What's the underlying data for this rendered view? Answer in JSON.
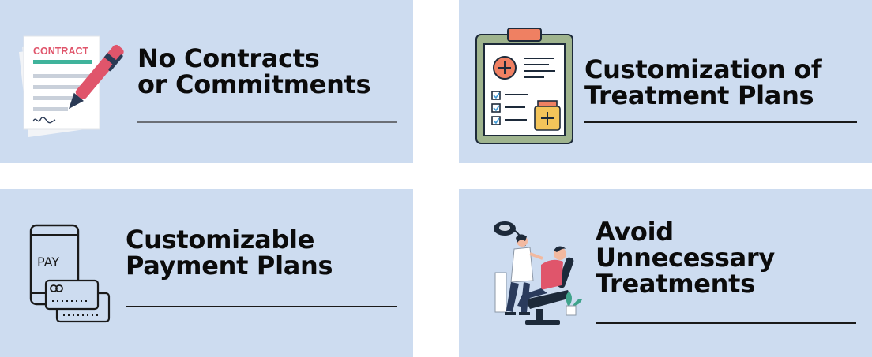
{
  "cards": [
    {
      "title_lines": [
        "No Contracts",
        "or Commitments"
      ],
      "icon": "contract-icon",
      "icon_text": "CONTRACT"
    },
    {
      "title_lines": [
        "Customization of",
        "Treatment Plans"
      ],
      "icon": "clipboard-treatment-plan-icon"
    },
    {
      "title_lines": [
        "Customizable",
        "Payment Plans"
      ],
      "icon": "mobile-payment-icon",
      "icon_text": "PAY"
    },
    {
      "title_lines": [
        "Avoid",
        "Unnecessary",
        "Treatments"
      ],
      "icon": "dentist-patient-illustration"
    }
  ],
  "colors": {
    "card_bg": "#cddcf0",
    "accent_red": "#e0556b",
    "accent_green": "#3fb39b",
    "clipboard_frame": "#9fb48e",
    "clipboard_clip": "#ef8062",
    "dark": "#1d2a3a"
  }
}
